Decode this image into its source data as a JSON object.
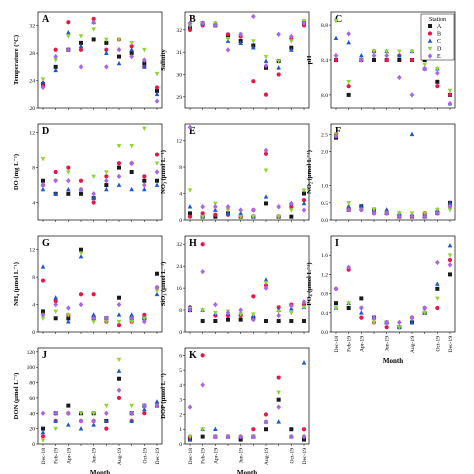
{
  "station_legend": {
    "title": "Station",
    "items": [
      {
        "label": "A",
        "color": "#1a1a1a",
        "shape": "square"
      },
      {
        "label": "B",
        "color": "#e8174a",
        "shape": "circle"
      },
      {
        "label": "C",
        "color": "#1f57d1",
        "shape": "triangle-up"
      },
      {
        "label": "D",
        "color": "#8fd631",
        "shape": "triangle-down"
      },
      {
        "label": "E",
        "color": "#a566e8",
        "shape": "diamond"
      }
    ]
  },
  "months": [
    "Dec-18",
    "Feb-19",
    "Apr-19",
    "May-19",
    "Jun-19",
    "Jul-19",
    "Aug-19",
    "Sep-19",
    "Oct-19",
    "Dec-19"
  ],
  "x_tick_labels": [
    "Dec-18",
    "Feb-19",
    "Apr-19",
    "Jun-19",
    "Aug-19",
    "Oct-19",
    "Dec-19"
  ],
  "x_label": "Month",
  "chart_data": [
    {
      "type": "scatter",
      "panel": "A",
      "ylabel": "Temperature (°C)",
      "ylim": [
        20,
        34
      ],
      "yticks": [
        20,
        24,
        28,
        32
      ],
      "series": [
        {
          "name": "A",
          "values": [
            23.5,
            26.0,
            28.5,
            29.5,
            30.0,
            29.5,
            27.5,
            28.0,
            26.5,
            22.5
          ]
        },
        {
          "name": "B",
          "values": [
            23.2,
            28.5,
            32.5,
            28.5,
            33.0,
            28.5,
            30.0,
            29.0,
            26.0,
            23.0
          ]
        },
        {
          "name": "C",
          "values": [
            23.8,
            25.5,
            31.0,
            29.0,
            32.5,
            28.0,
            26.5,
            28.5,
            26.0,
            22.0
          ]
        },
        {
          "name": "D",
          "values": [
            24.2,
            27.0,
            30.5,
            30.5,
            31.5,
            30.0,
            30.0,
            29.5,
            28.5,
            25.0
          ]
        },
        {
          "name": "E",
          "values": [
            23.0,
            27.5,
            28.5,
            26.0,
            32.5,
            26.0,
            28.5,
            27.5,
            27.0,
            21.0
          ]
        }
      ]
    },
    {
      "type": "scatter",
      "panel": "B",
      "ylabel": "Salinity",
      "ylim": [
        28.5,
        32.8
      ],
      "yticks": [
        29,
        30,
        31,
        32
      ],
      "series": [
        {
          "name": "A",
          "values": [
            32.1,
            32.3,
            32.2,
            31.7,
            31.5,
            31.3,
            30.3,
            30.6,
            31.2,
            32.3
          ]
        },
        {
          "name": "B",
          "values": [
            32.0,
            32.2,
            32.2,
            31.8,
            31.7,
            29.7,
            29.1,
            30.0,
            31.6,
            32.2
          ]
        },
        {
          "name": "C",
          "values": [
            32.2,
            32.3,
            32.3,
            31.5,
            31.4,
            31.2,
            30.6,
            30.3,
            31.1,
            32.4
          ]
        },
        {
          "name": "D",
          "values": [
            32.2,
            32.3,
            32.3,
            31.6,
            31.8,
            31.5,
            30.8,
            30.6,
            31.5,
            32.4
          ]
        },
        {
          "name": "E",
          "values": [
            32.3,
            32.3,
            32.2,
            31.1,
            31.8,
            32.6,
            30.4,
            31.8,
            31.7,
            32.3
          ]
        }
      ]
    },
    {
      "type": "scatter",
      "panel": "C",
      "ylabel": "pH",
      "ylim": [
        7.85,
        8.95
      ],
      "yticks": [
        8.0,
        8.4,
        8.8
      ],
      "series": [
        {
          "name": "A",
          "values": [
            8.4,
            8.0,
            8.4,
            8.4,
            8.4,
            8.4,
            8.4,
            8.4,
            8.15,
            8.0
          ]
        },
        {
          "name": "B",
          "values": [
            8.4,
            8.1,
            8.4,
            8.5,
            8.4,
            8.45,
            8.4,
            8.3,
            8.1,
            8.0
          ]
        },
        {
          "name": "C",
          "values": [
            8.65,
            8.6,
            8.45,
            8.5,
            8.5,
            8.45,
            8.5,
            8.3,
            8.3,
            7.9
          ]
        },
        {
          "name": "D",
          "values": [
            8.85,
            8.15,
            8.4,
            8.5,
            8.5,
            8.5,
            8.5,
            8.35,
            8.3,
            8.05
          ]
        },
        {
          "name": "E",
          "values": [
            8.45,
            8.7,
            8.4,
            8.45,
            8.45,
            8.2,
            8.0,
            8.3,
            8.25,
            7.9
          ]
        }
      ]
    },
    {
      "type": "scatter",
      "panel": "D",
      "ylabel": "DO (mg L⁻¹)",
      "ylim": [
        2,
        13
      ],
      "yticks": [
        4,
        8,
        12
      ],
      "series": [
        {
          "name": "A",
          "values": [
            6.5,
            5.0,
            5.0,
            5.0,
            4.5,
            6.0,
            8.0,
            7.5,
            6.5,
            6.5
          ]
        },
        {
          "name": "B",
          "values": [
            6.0,
            7.5,
            8.0,
            6.5,
            4.0,
            7.0,
            8.5,
            8.5,
            7.0,
            9.5
          ]
        },
        {
          "name": "C",
          "values": [
            5.5,
            5.0,
            5.5,
            5.5,
            4.5,
            5.5,
            6.0,
            5.5,
            5.5,
            6.0
          ]
        },
        {
          "name": "D",
          "values": [
            9.0,
            6.5,
            7.5,
            5.5,
            7.0,
            7.5,
            10.5,
            10.5,
            12.5,
            8.5
          ]
        },
        {
          "name": "E",
          "values": [
            6.0,
            6.5,
            6.5,
            5.5,
            5.0,
            6.5,
            7.0,
            8.5,
            6.0,
            7.5
          ]
        }
      ]
    },
    {
      "type": "scatter",
      "panel": "E",
      "ylabel": "NO₃ (µmol L⁻¹)",
      "ylim": [
        0,
        14.5
      ],
      "yticks": [
        0,
        4,
        8,
        12
      ],
      "series": [
        {
          "name": "A",
          "values": [
            1.0,
            0.5,
            0.5,
            1.0,
            0.5,
            0.5,
            2.5,
            0.5,
            0.5,
            4.0
          ]
        },
        {
          "name": "B",
          "values": [
            0.5,
            1.0,
            0.8,
            0.8,
            0.5,
            1.5,
            10.0,
            0.5,
            2.0,
            3.0
          ]
        },
        {
          "name": "C",
          "values": [
            2.0,
            0.5,
            1.5,
            1.0,
            1.0,
            0.5,
            3.5,
            0.5,
            2.5,
            2.5
          ]
        },
        {
          "name": "D",
          "values": [
            4.5,
            0.5,
            2.5,
            1.5,
            0.5,
            0.5,
            7.5,
            0.5,
            1.5,
            4.5
          ]
        },
        {
          "name": "E",
          "values": [
            14.0,
            2.0,
            2.0,
            2.0,
            1.5,
            1.5,
            10.5,
            2.0,
            2.5,
            1.5
          ]
        }
      ]
    },
    {
      "type": "scatter",
      "panel": "F",
      "ylabel": "NO₂ (µmol L⁻¹)",
      "ylim": [
        0,
        2.8
      ],
      "yticks": [
        0.0,
        0.5,
        1.0,
        2.0,
        2.5
      ],
      "series": [
        {
          "name": "A",
          "values": [
            2.4,
            0.3,
            0.4,
            0.3,
            0.2,
            0.1,
            0.1,
            0.1,
            0.2,
            0.5
          ]
        },
        {
          "name": "B",
          "values": [
            2.5,
            0.3,
            0.3,
            0.2,
            0.2,
            0.1,
            0.1,
            0.2,
            0.2,
            0.4
          ]
        },
        {
          "name": "C",
          "values": [
            2.45,
            0.4,
            0.4,
            0.3,
            0.3,
            0.2,
            2.5,
            0.1,
            0.3,
            0.5
          ]
        },
        {
          "name": "D",
          "values": [
            2.5,
            0.5,
            0.3,
            0.3,
            0.2,
            0.2,
            0.2,
            0.2,
            0.3,
            0.3
          ]
        },
        {
          "name": "E",
          "values": [
            2.45,
            0.3,
            0.3,
            0.2,
            0.2,
            0.1,
            0.1,
            0.1,
            0.2,
            0.4
          ]
        }
      ]
    },
    {
      "type": "scatter",
      "panel": "G",
      "ylabel": "NH₄ (µmol L⁻¹)",
      "ylim": [
        0,
        14
      ],
      "yticks": [
        0,
        4,
        8,
        12
      ],
      "series": [
        {
          "name": "A",
          "values": [
            3.0,
            2.0,
            2.0,
            12.0,
            2.0,
            2.0,
            5.0,
            2.0,
            2.0,
            8.5
          ]
        },
        {
          "name": "B",
          "values": [
            7.5,
            4.5,
            2.5,
            5.5,
            5.5,
            1.5,
            1.0,
            1.5,
            2.5,
            6.5
          ]
        },
        {
          "name": "C",
          "values": [
            9.5,
            5.0,
            1.5,
            11.0,
            2.5,
            2.0,
            2.5,
            2.5,
            2.0,
            5.5
          ]
        },
        {
          "name": "D",
          "values": [
            2.0,
            3.0,
            2.5,
            11.5,
            1.5,
            1.5,
            1.5,
            1.5,
            2.0,
            6.0
          ]
        },
        {
          "name": "E",
          "values": [
            2.5,
            4.0,
            3.5,
            4.0,
            2.0,
            2.0,
            4.0,
            2.0,
            1.5,
            6.5
          ]
        }
      ]
    },
    {
      "type": "scatter",
      "panel": "H",
      "ylabel": "SiO₃ (µmol L⁻¹)",
      "ylim": [
        0,
        35
      ],
      "yticks": [
        0,
        8,
        16,
        24,
        32
      ],
      "series": [
        {
          "name": "A",
          "values": [
            8.0,
            4.0,
            4.0,
            4.5,
            4.5,
            5.0,
            4.0,
            4.0,
            4.0,
            4.0
          ]
        },
        {
          "name": "B",
          "values": [
            9.0,
            32.0,
            6.0,
            6.0,
            6.0,
            13.0,
            17.0,
            9.0,
            10.0,
            10.0
          ]
        },
        {
          "name": "C",
          "values": [
            9.0,
            8.0,
            6.5,
            6.5,
            7.0,
            6.0,
            19.0,
            8.0,
            8.5,
            9.0
          ]
        },
        {
          "name": "D",
          "values": [
            8.5,
            8.0,
            7.0,
            7.5,
            6.5,
            6.5,
            18.0,
            7.5,
            7.0,
            9.0
          ]
        },
        {
          "name": "E",
          "values": [
            8.0,
            22.0,
            10.0,
            7.0,
            8.0,
            4.5,
            16.0,
            6.0,
            9.5,
            11.0
          ]
        }
      ]
    },
    {
      "type": "scatter",
      "panel": "I",
      "ylabel": "PO₄ (µmol L⁻¹)",
      "ylim": [
        0,
        2.0
      ],
      "yticks": [
        0.0,
        0.4,
        0.8,
        1.2,
        1.6
      ],
      "series": [
        {
          "name": "A",
          "values": [
            0.6,
            0.5,
            0.7,
            0.3,
            0.2,
            0.1,
            0.2,
            0.4,
            0.9,
            1.2
          ]
        },
        {
          "name": "B",
          "values": [
            0.9,
            1.3,
            0.3,
            0.2,
            0.1,
            0.1,
            0.3,
            0.5,
            0.5,
            1.5
          ]
        },
        {
          "name": "C",
          "values": [
            0.5,
            0.6,
            0.4,
            0.3,
            0.2,
            0.1,
            0.2,
            0.4,
            1.0,
            1.8
          ]
        },
        {
          "name": "D",
          "values": [
            0.5,
            0.6,
            0.5,
            0.2,
            0.2,
            0.1,
            0.3,
            0.4,
            0.7,
            1.6
          ]
        },
        {
          "name": "E",
          "values": [
            0.9,
            1.35,
            0.5,
            0.3,
            0.2,
            0.2,
            0.3,
            0.5,
            1.45,
            1.4
          ]
        }
      ]
    },
    {
      "type": "scatter",
      "panel": "J",
      "ylabel": "DON (µmol L⁻¹)",
      "ylim": [
        0,
        125
      ],
      "yticks": [
        0,
        20,
        40,
        60,
        80,
        100,
        120
      ],
      "series": [
        {
          "name": "A",
          "values": [
            20.0,
            40.0,
            50.0,
            40.0,
            40.0,
            30.0,
            85.0,
            40.0,
            50.0,
            50.0
          ]
        },
        {
          "name": "B",
          "values": [
            10.0,
            30.0,
            40.0,
            30.0,
            30.0,
            20.0,
            60.0,
            30.0,
            40.0,
            50.0
          ]
        },
        {
          "name": "C",
          "values": [
            15.0,
            30.0,
            25.0,
            20.0,
            25.0,
            30.0,
            95.0,
            30.0,
            45.0,
            55.0
          ]
        },
        {
          "name": "D",
          "values": [
            5.0,
            20.0,
            40.0,
            40.0,
            40.0,
            50.0,
            110.0,
            50.0,
            50.0,
            50.0
          ]
        },
        {
          "name": "E",
          "values": [
            40.0,
            40.0,
            40.0,
            30.0,
            30.0,
            40.0,
            70.0,
            40.0,
            50.0,
            50.0
          ]
        }
      ]
    },
    {
      "type": "scatter",
      "panel": "K",
      "ylabel": "DOP (µmol L⁻¹)",
      "ylim": [
        0,
        6.5
      ],
      "yticks": [
        0,
        1,
        2,
        3,
        4,
        5,
        6
      ],
      "series": [
        {
          "name": "A",
          "values": [
            0.3,
            0.5,
            0.5,
            0.5,
            0.3,
            0.5,
            1.0,
            3.0,
            1.0,
            0.3
          ]
        },
        {
          "name": "B",
          "values": [
            0.5,
            6.0,
            0.5,
            0.5,
            0.5,
            1.0,
            2.0,
            4.5,
            0.5,
            1.0
          ]
        },
        {
          "name": "C",
          "values": [
            0.3,
            1.0,
            1.0,
            0.5,
            0.5,
            0.5,
            1.5,
            1.5,
            0.5,
            5.5
          ]
        },
        {
          "name": "D",
          "values": [
            0.5,
            1.0,
            0.5,
            0.5,
            0.5,
            0.5,
            1.5,
            3.5,
            0.5,
            0.5
          ]
        },
        {
          "name": "E",
          "values": [
            2.5,
            4.0,
            0.5,
            0.5,
            0.5,
            0.5,
            1.5,
            2.5,
            0.5,
            0.5
          ]
        }
      ]
    }
  ]
}
